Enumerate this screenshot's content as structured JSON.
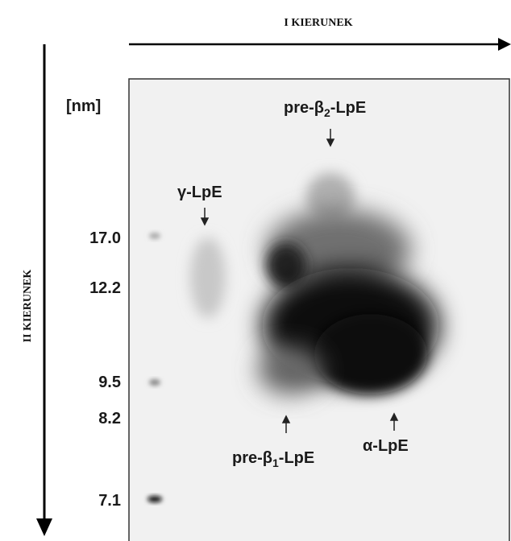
{
  "direction_1": "I KIERUNEK",
  "direction_2": "II KIERUNEK",
  "unit": "[nm]",
  "sizes": [
    "17.0",
    "12.2",
    "9.5",
    "8.2",
    "7.1"
  ],
  "spots": {
    "pre_beta2": {
      "prefix": "pre-β",
      "sub": "2",
      "suffix": "-LpE"
    },
    "gamma": {
      "text": "γ-LpE"
    },
    "pre_beta1": {
      "prefix": "pre-β",
      "sub": "1",
      "suffix": "-LpE"
    },
    "alpha": {
      "text": "α-LpE"
    }
  }
}
